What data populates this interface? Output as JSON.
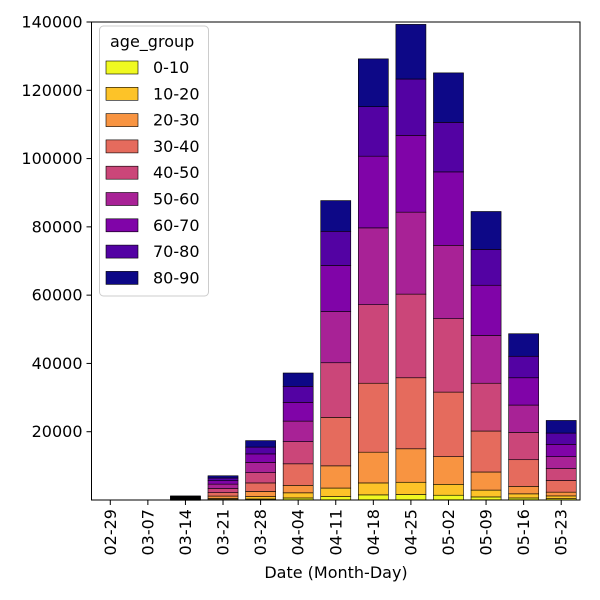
{
  "chart_data": {
    "type": "bar",
    "stacked": true,
    "title": "",
    "xlabel": "Date (Month-Day)",
    "ylabel": "",
    "ylim": [
      0,
      140000
    ],
    "yticks": [
      20000,
      40000,
      60000,
      80000,
      100000,
      120000,
      140000
    ],
    "grid": false,
    "legend": {
      "title": "age_group",
      "placement": "top-left"
    },
    "categories": [
      "02-29",
      "03-07",
      "03-14",
      "03-21",
      "03-28",
      "04-04",
      "04-11",
      "04-18",
      "04-25",
      "05-02",
      "05-09",
      "05-16",
      "05-23"
    ],
    "series": [
      {
        "name": "0-10",
        "color": "#f0f921",
        "values": [
          0,
          0,
          50,
          150,
          300,
          600,
          1000,
          1500,
          1600,
          1400,
          900,
          600,
          400
        ]
      },
      {
        "name": "10-20",
        "color": "#fdc328",
        "values": [
          0,
          0,
          100,
          300,
          700,
          1500,
          2500,
          3500,
          3600,
          3200,
          2000,
          1200,
          800
        ]
      },
      {
        "name": "20-30",
        "color": "#f89441",
        "values": [
          0,
          0,
          150,
          700,
          1500,
          2200,
          6500,
          9000,
          9800,
          8100,
          5300,
          2200,
          1100
        ]
      },
      {
        "name": "30-40",
        "color": "#e56b5d",
        "values": [
          0,
          0,
          150,
          1000,
          2500,
          6300,
          14200,
          20200,
          20800,
          18900,
          12000,
          7800,
          3400
        ]
      },
      {
        "name": "40-50",
        "color": "#cb4679",
        "values": [
          0,
          0,
          150,
          1200,
          3000,
          6500,
          16000,
          23000,
          24500,
          21500,
          14000,
          8000,
          3500
        ]
      },
      {
        "name": "50-60",
        "color": "#a82296",
        "values": [
          0,
          0,
          150,
          1300,
          3000,
          6000,
          15000,
          22500,
          24000,
          21500,
          14000,
          8000,
          3500
        ]
      },
      {
        "name": "60-70",
        "color": "#8004a8",
        "values": [
          0,
          0,
          150,
          1000,
          2500,
          5500,
          13500,
          21000,
          22500,
          21500,
          14700,
          8000,
          3600
        ]
      },
      {
        "name": "70-80",
        "color": "#5302a3",
        "values": [
          0,
          0,
          150,
          800,
          2000,
          4700,
          10000,
          14500,
          16500,
          14500,
          10500,
          6300,
          3300
        ]
      },
      {
        "name": "80-90",
        "color": "#0d0887",
        "values": [
          0,
          0,
          150,
          650,
          1900,
          3900,
          9000,
          14000,
          16000,
          14500,
          11100,
          6600,
          3700
        ]
      }
    ]
  }
}
